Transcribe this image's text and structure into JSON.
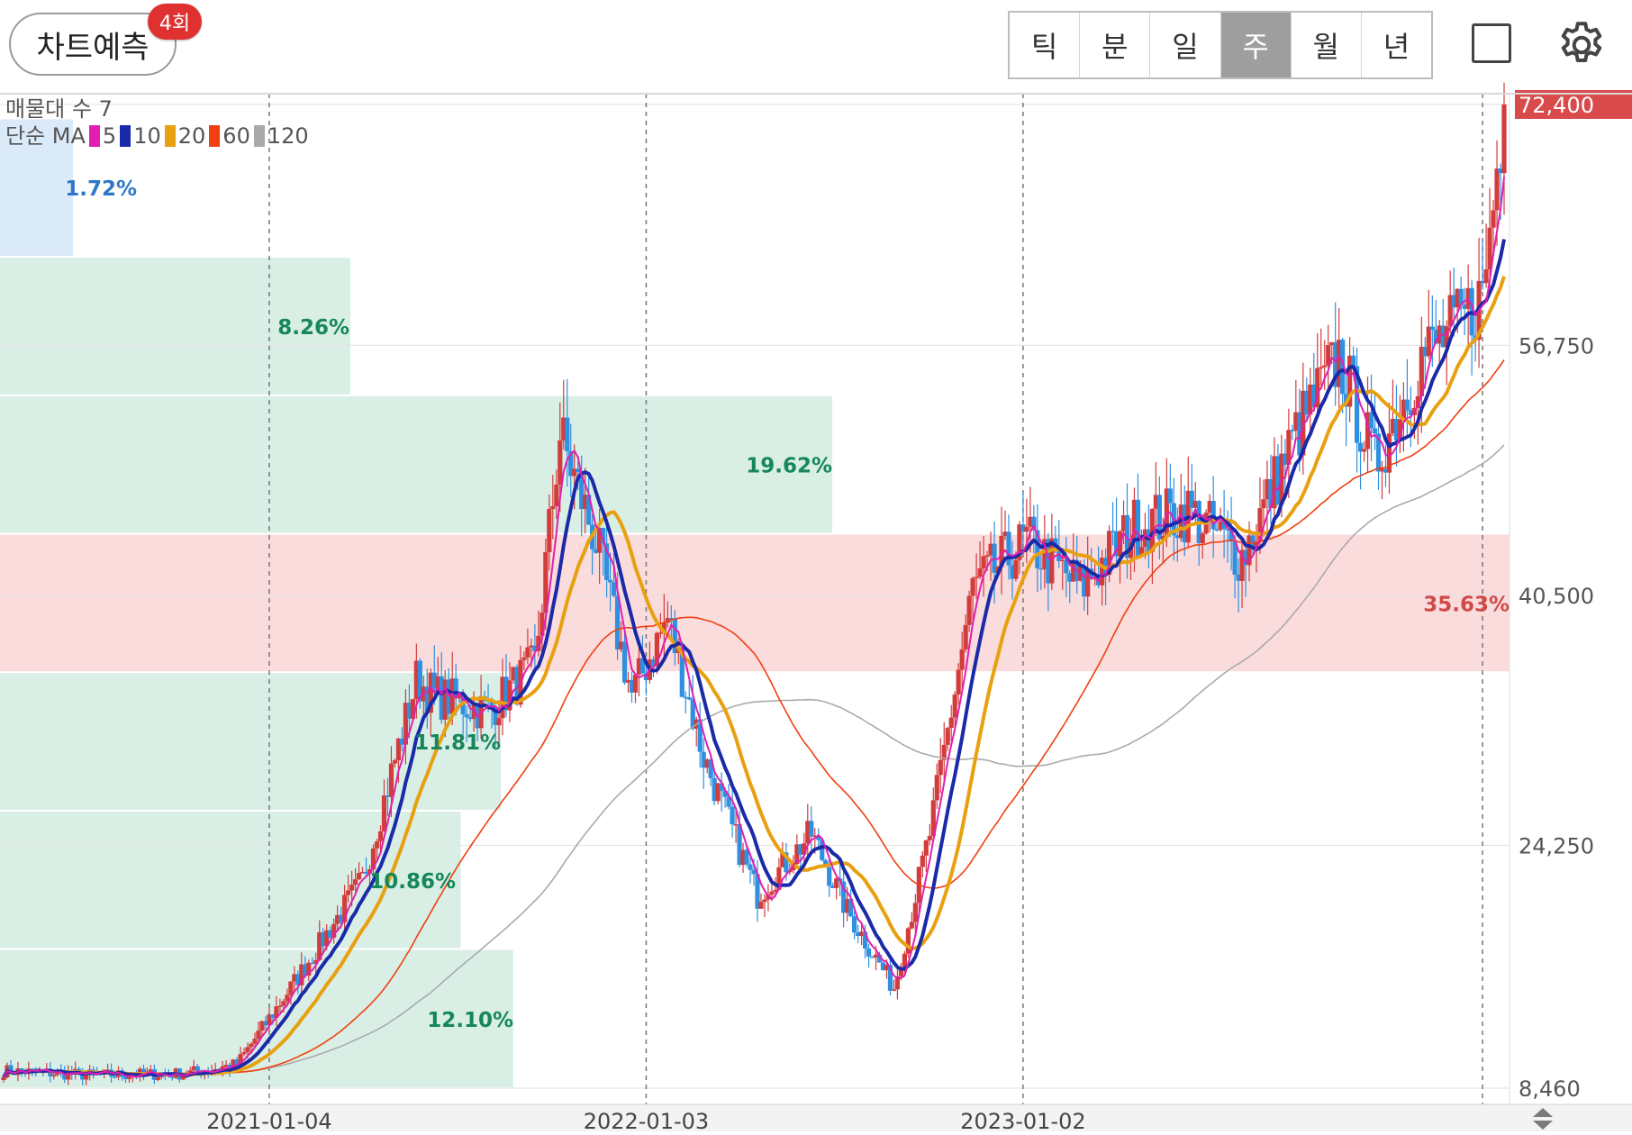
{
  "toolbar": {
    "predict_label": "차트예측",
    "predict_count": "4회",
    "periods": [
      {
        "label": "틱",
        "active": false
      },
      {
        "label": "분",
        "active": false
      },
      {
        "label": "일",
        "active": false
      },
      {
        "label": "주",
        "active": true
      },
      {
        "label": "월",
        "active": false
      },
      {
        "label": "년",
        "active": false
      }
    ]
  },
  "legend": {
    "volume_profile_label": "매물대 수 7",
    "ma_label": "단순 MA",
    "ma_items": [
      {
        "period": "5",
        "color": "#e020b0"
      },
      {
        "period": "10",
        "color": "#1a2aa8"
      },
      {
        "period": "20",
        "color": "#e8a010"
      },
      {
        "period": "60",
        "color": "#f04010"
      },
      {
        "period": "120",
        "color": "#aaaaaa"
      }
    ]
  },
  "chart_data": {
    "type": "candlestick",
    "y_axis_labels": [
      "72,400",
      "56,750",
      "40,500",
      "24,250",
      "8,460"
    ],
    "y_ticks": [
      72400,
      56750,
      40500,
      24250,
      8460
    ],
    "x_axis_labels": [
      "2021-01-04",
      "2022-01-03",
      "2023-01-02"
    ],
    "last_price": "72,400",
    "volume_profile": [
      {
        "low": 8460,
        "high": 17500,
        "percent": "12.10%",
        "share": 12.1
      },
      {
        "low": 17500,
        "high": 26500,
        "percent": "10.86%",
        "share": 10.86
      },
      {
        "low": 26500,
        "high": 35500,
        "percent": "11.81%",
        "share": 11.81
      },
      {
        "low": 35500,
        "high": 44500,
        "percent": "35.63%",
        "share": 35.63,
        "highlight": true
      },
      {
        "low": 44500,
        "high": 53500,
        "percent": "19.62%",
        "share": 19.62
      },
      {
        "low": 53500,
        "high": 62500,
        "percent": "8.26%",
        "share": 8.26
      },
      {
        "low": 62500,
        "high": 71500,
        "percent": "1.72%",
        "share": 1.72
      }
    ],
    "series_anchor_points": [
      {
        "t": 0,
        "v": 9600
      },
      {
        "t": 25,
        "v": 9300
      },
      {
        "t": 50,
        "v": 9400
      },
      {
        "t": 65,
        "v": 10000
      },
      {
        "t": 80,
        "v": 15000
      },
      {
        "t": 100,
        "v": 22000
      },
      {
        "t": 115,
        "v": 35000
      },
      {
        "t": 120,
        "v": 34000
      },
      {
        "t": 135,
        "v": 33000
      },
      {
        "t": 148,
        "v": 36000
      },
      {
        "t": 155,
        "v": 51000
      },
      {
        "t": 165,
        "v": 44000
      },
      {
        "t": 175,
        "v": 34000
      },
      {
        "t": 185,
        "v": 39000
      },
      {
        "t": 195,
        "v": 30000
      },
      {
        "t": 210,
        "v": 21000
      },
      {
        "t": 225,
        "v": 25000
      },
      {
        "t": 235,
        "v": 20000
      },
      {
        "t": 248,
        "v": 15000
      },
      {
        "t": 258,
        "v": 25000
      },
      {
        "t": 270,
        "v": 41000
      },
      {
        "t": 285,
        "v": 44000
      },
      {
        "t": 300,
        "v": 41000
      },
      {
        "t": 315,
        "v": 45000
      },
      {
        "t": 330,
        "v": 46000
      },
      {
        "t": 345,
        "v": 43000
      },
      {
        "t": 360,
        "v": 51000
      },
      {
        "t": 372,
        "v": 56000
      },
      {
        "t": 382,
        "v": 49000
      },
      {
        "t": 395,
        "v": 56000
      },
      {
        "t": 405,
        "v": 58000
      },
      {
        "t": 412,
        "v": 60000
      },
      {
        "t": 418,
        "v": 72400
      }
    ]
  }
}
